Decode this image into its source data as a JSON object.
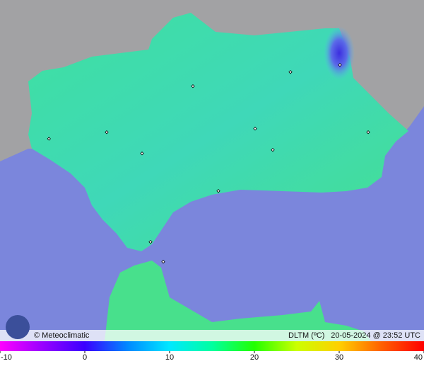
{
  "footer": {
    "credit": "© Meteoclimatic",
    "variable": "DLTM (ºC)",
    "timestamp": "20-05-2024 @ 23:52 UTC"
  },
  "colorbar": {
    "ticks": [
      -10,
      0,
      10,
      20,
      30,
      40
    ]
  }
}
